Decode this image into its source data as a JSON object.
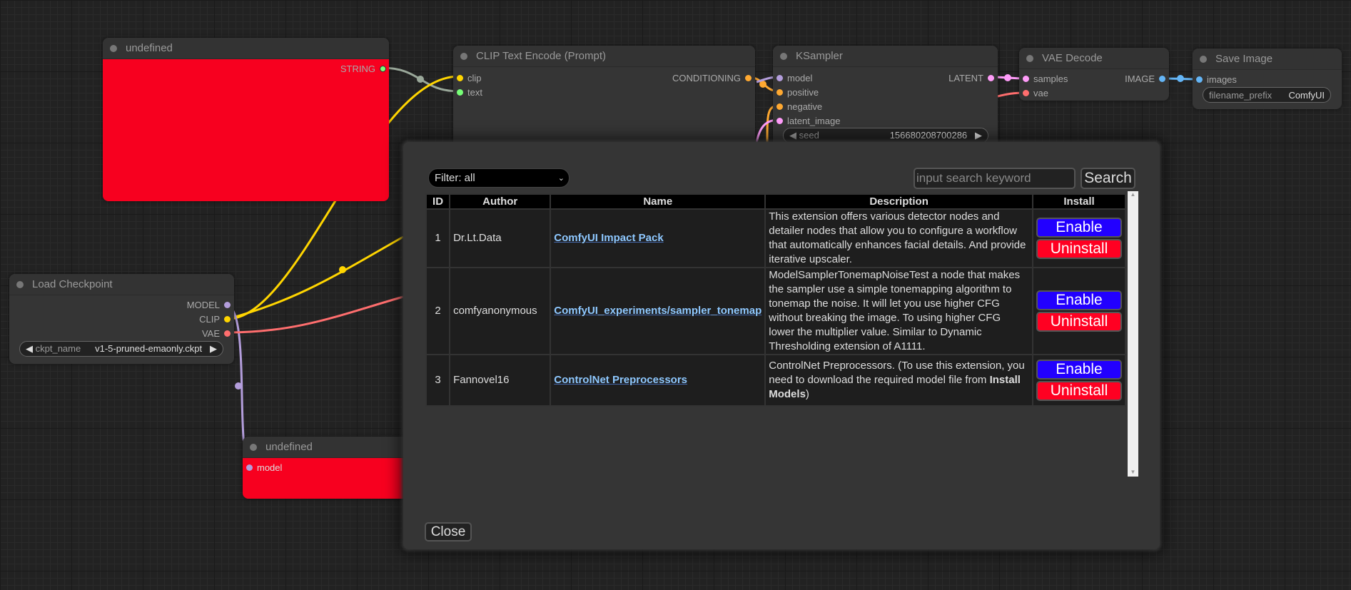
{
  "nodes": {
    "string_node": {
      "title": "undefined",
      "output": "STRING"
    },
    "clip_encode": {
      "title": "CLIP Text Encode (Prompt)",
      "inputs": [
        "clip",
        "text"
      ],
      "output": "CONDITIONING"
    },
    "ksampler": {
      "title": "KSampler",
      "inputs": [
        "model",
        "positive",
        "negative",
        "latent_image"
      ],
      "output": "LATENT",
      "seed_label": "seed",
      "seed_value": "156680208700286"
    },
    "vae_decode": {
      "title": "VAE Decode",
      "inputs": [
        "samples",
        "vae"
      ],
      "output": "IMAGE"
    },
    "save_image": {
      "title": "Save Image",
      "input": "images",
      "prefix_label": "filename_prefix",
      "prefix_value": "ComfyUI"
    },
    "load_checkpoint": {
      "title": "Load Checkpoint",
      "outputs": [
        "MODEL",
        "CLIP",
        "VAE"
      ],
      "ckpt_label": "ckpt_name",
      "ckpt_value": "v1-5-pruned-emaonly.ckpt"
    },
    "model_node": {
      "title": "undefined",
      "input": "model"
    }
  },
  "modal": {
    "filter": "Filter: all",
    "search_placeholder": "input search keyword",
    "search_label": "Search",
    "columns": [
      "ID",
      "Author",
      "Name",
      "Description",
      "Install"
    ],
    "rows": [
      {
        "id": "1",
        "author": "Dr.Lt.Data",
        "name": "ComfyUI Impact Pack",
        "description": "This extension offers various detector nodes and detailer nodes that allow you to configure a workflow that automatically enhances facial details. And provide iterative upscaler.",
        "enable": "Enable",
        "uninstall": "Uninstall"
      },
      {
        "id": "2",
        "author": "comfyanonymous",
        "name": "ComfyUI_experiments/sampler_tonemap",
        "description": "ModelSamplerTonemapNoiseTest a node that makes the sampler use a simple tonemapping algorithm to tonemap the noise. It will let you use higher CFG without breaking the image. To using higher CFG lower the multiplier value. Similar to Dynamic Thresholding extension of A1111.",
        "enable": "Enable",
        "uninstall": "Uninstall"
      },
      {
        "id": "3",
        "author": "Fannovel16",
        "name": "ControlNet Preprocessors",
        "description_pre": "ControlNet Preprocessors. (To use this extension, you need to download the required model file from ",
        "description_bold": "Install Models",
        "description_post": ")",
        "enable": "Enable",
        "uninstall": "Uninstall"
      }
    ],
    "close_label": "Close"
  },
  "colors": {
    "enable": "#2200ff",
    "uninstall": "#ff0022",
    "node_error": "#f7001f",
    "clip": "#ffd500",
    "model": "#b39ddb",
    "vae": "#ff6e6e",
    "conditioning": "#ffa931",
    "latent": "#ff9cf9",
    "image": "#64b5f6",
    "string": "#77ff77"
  }
}
